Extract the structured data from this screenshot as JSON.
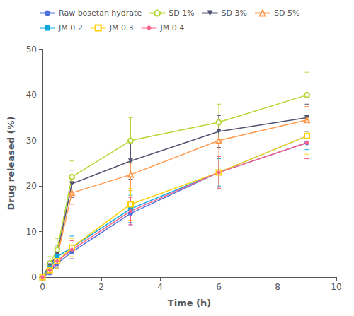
{
  "chart_data": {
    "type": "line",
    "xlabel": "Time (h)",
    "ylabel": "Drug released (%)",
    "x": [
      0,
      0.25,
      0.5,
      1.0,
      3.0,
      6.0,
      9.0
    ],
    "xlim": [
      0,
      10
    ],
    "ylim": [
      0,
      50
    ],
    "xticks": [
      0,
      2,
      4,
      6,
      8,
      10
    ],
    "yticks": [
      0,
      10,
      20,
      30,
      40,
      50
    ],
    "grid": false,
    "legend": "upper left",
    "series": [
      {
        "name": "Raw bosetan hydrate",
        "marker": "circle",
        "values": [
          0,
          1.0,
          3.0,
          5.5,
          14.0,
          23.0,
          29.5
        ],
        "err": [
          0,
          0.5,
          1.0,
          1.5,
          2.5,
          3.5,
          3.5
        ]
      },
      {
        "name": "SD 1%",
        "marker": "circle-open",
        "values": [
          0,
          3.0,
          6.0,
          22.0,
          30.0,
          34.0,
          40.0
        ],
        "err": [
          0,
          1.5,
          2.5,
          3.5,
          5.0,
          4.0,
          5.0
        ]
      },
      {
        "name": "SD 3%",
        "marker": "triangle-down",
        "values": [
          0,
          2.5,
          5.0,
          20.5,
          25.5,
          32.0,
          35.0
        ],
        "err": [
          0,
          1.0,
          2.0,
          3.0,
          4.0,
          3.5,
          3.0
        ]
      },
      {
        "name": "SD 5%",
        "marker": "triangle-up-open",
        "values": [
          0,
          2.0,
          4.5,
          18.5,
          22.5,
          30.0,
          34.5
        ],
        "err": [
          0,
          0.8,
          1.5,
          2.5,
          3.5,
          3.5,
          3.0
        ]
      },
      {
        "name": "JM 0.2",
        "marker": "square",
        "values": [
          0,
          2.0,
          4.5,
          6.5,
          15.0,
          23.0,
          31.0
        ],
        "err": [
          0,
          0.8,
          1.5,
          2.5,
          3.0,
          3.0,
          3.0
        ]
      },
      {
        "name": "JM 0.3",
        "marker": "square-open",
        "values": [
          0,
          1.5,
          3.5,
          6.5,
          16.0,
          23.0,
          31.0
        ],
        "err": [
          0,
          0.8,
          1.5,
          2.0,
          3.5,
          3.5,
          4.0
        ]
      },
      {
        "name": "JM 0.4",
        "marker": "diamond",
        "values": [
          0,
          1.5,
          3.5,
          6.0,
          14.5,
          23.0,
          29.5
        ],
        "err": [
          0,
          0.8,
          1.2,
          2.0,
          3.0,
          3.5,
          3.5
        ]
      }
    ]
  }
}
